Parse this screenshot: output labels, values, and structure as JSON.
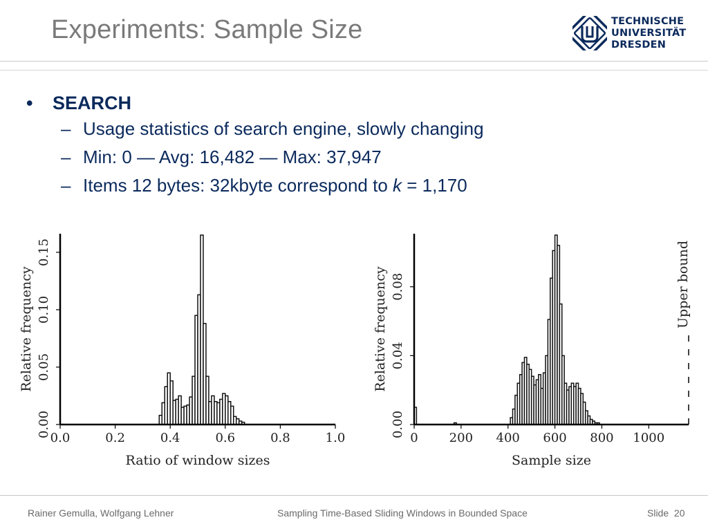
{
  "slide": {
    "title": "Experiments: Sample Size",
    "logo_lines": [
      "TECHNISCHE",
      "UNIVERSITÄT",
      "DRESDEN"
    ],
    "bullet_main": "SEARCH",
    "sub_bullets": [
      {
        "dash": "–",
        "text": "Usage statistics of search engine, slowly changing"
      },
      {
        "dash": "–",
        "text": "Min: 0 — Avg: 16,482 — Max: 37,947"
      },
      {
        "dash": "–",
        "prefix": "Items 12 bytes: 32kbyte correspond to ",
        "var": "k",
        "suffix": " = 1,170"
      }
    ]
  },
  "footer": {
    "authors": "Rainer Gemulla, Wolfgang Lehner",
    "talk_title": "Sampling Time-Based Sliding Windows in Bounded Space",
    "slide_label": "Slide",
    "slide_number": "20"
  },
  "chart_data": [
    {
      "type": "bar",
      "xlabel": "Ratio of window sizes",
      "ylabel": "Relative frequency",
      "xlim": [
        0.0,
        1.0
      ],
      "ylim": [
        0.0,
        0.165
      ],
      "xticks": [
        "0.0",
        "0.2",
        "0.4",
        "0.6",
        "0.8",
        "1.0"
      ],
      "xtick_values": [
        0.0,
        0.2,
        0.4,
        0.6,
        0.8,
        1.0
      ],
      "yticks": [
        "0.00",
        "0.05",
        "0.10",
        "0.15"
      ],
      "ytick_values": [
        0.0,
        0.05,
        0.1,
        0.15
      ],
      "bin_width": 0.01,
      "bins_start": [
        0.36,
        0.37,
        0.38,
        0.39,
        0.4,
        0.41,
        0.42,
        0.43,
        0.44,
        0.45,
        0.46,
        0.47,
        0.48,
        0.49,
        0.5,
        0.51,
        0.52,
        0.53,
        0.54,
        0.55,
        0.56,
        0.57,
        0.58,
        0.59,
        0.6,
        0.61,
        0.62,
        0.63,
        0.64,
        0.65,
        0.66
      ],
      "values": [
        0.008,
        0.019,
        0.033,
        0.045,
        0.038,
        0.021,
        0.022,
        0.025,
        0.015,
        0.016,
        0.017,
        0.024,
        0.042,
        0.095,
        0.113,
        0.165,
        0.088,
        0.042,
        0.02,
        0.025,
        0.02,
        0.019,
        0.022,
        0.027,
        0.025,
        0.02,
        0.016,
        0.007,
        0.005,
        0.003,
        0.002
      ],
      "grid": false
    },
    {
      "type": "bar",
      "xlabel": "Sample size",
      "ylabel": "Relative frequency",
      "annotation": "Upper bound",
      "annotation_x": 1170,
      "xlim": [
        0,
        1170
      ],
      "ylim": [
        0.0,
        0.11
      ],
      "xticks": [
        "0",
        "200",
        "400",
        "600",
        "800",
        "1000"
      ],
      "xtick_values": [
        0,
        200,
        400,
        600,
        800,
        1000
      ],
      "yticks": [
        "0.00",
        "0.04",
        "0.08"
      ],
      "ytick_values": [
        0.0,
        0.04,
        0.08
      ],
      "bin_width": 10,
      "bins_start": [
        0,
        170,
        410,
        420,
        430,
        440,
        450,
        460,
        470,
        480,
        490,
        500,
        510,
        520,
        530,
        540,
        550,
        560,
        570,
        580,
        590,
        600,
        610,
        620,
        630,
        640,
        650,
        660,
        670,
        680,
        690,
        700,
        710,
        720,
        730,
        740,
        750,
        760,
        770,
        780
      ],
      "values": [
        0.01,
        0.001,
        0.004,
        0.009,
        0.017,
        0.024,
        0.029,
        0.036,
        0.039,
        0.035,
        0.032,
        0.028,
        0.023,
        0.026,
        0.029,
        0.021,
        0.03,
        0.04,
        0.061,
        0.085,
        0.101,
        0.11,
        0.104,
        0.07,
        0.04,
        0.024,
        0.02,
        0.022,
        0.024,
        0.022,
        0.024,
        0.021,
        0.018,
        0.013,
        0.008,
        0.005,
        0.003,
        0.002,
        0.001,
        0.001
      ],
      "grid": false
    }
  ]
}
